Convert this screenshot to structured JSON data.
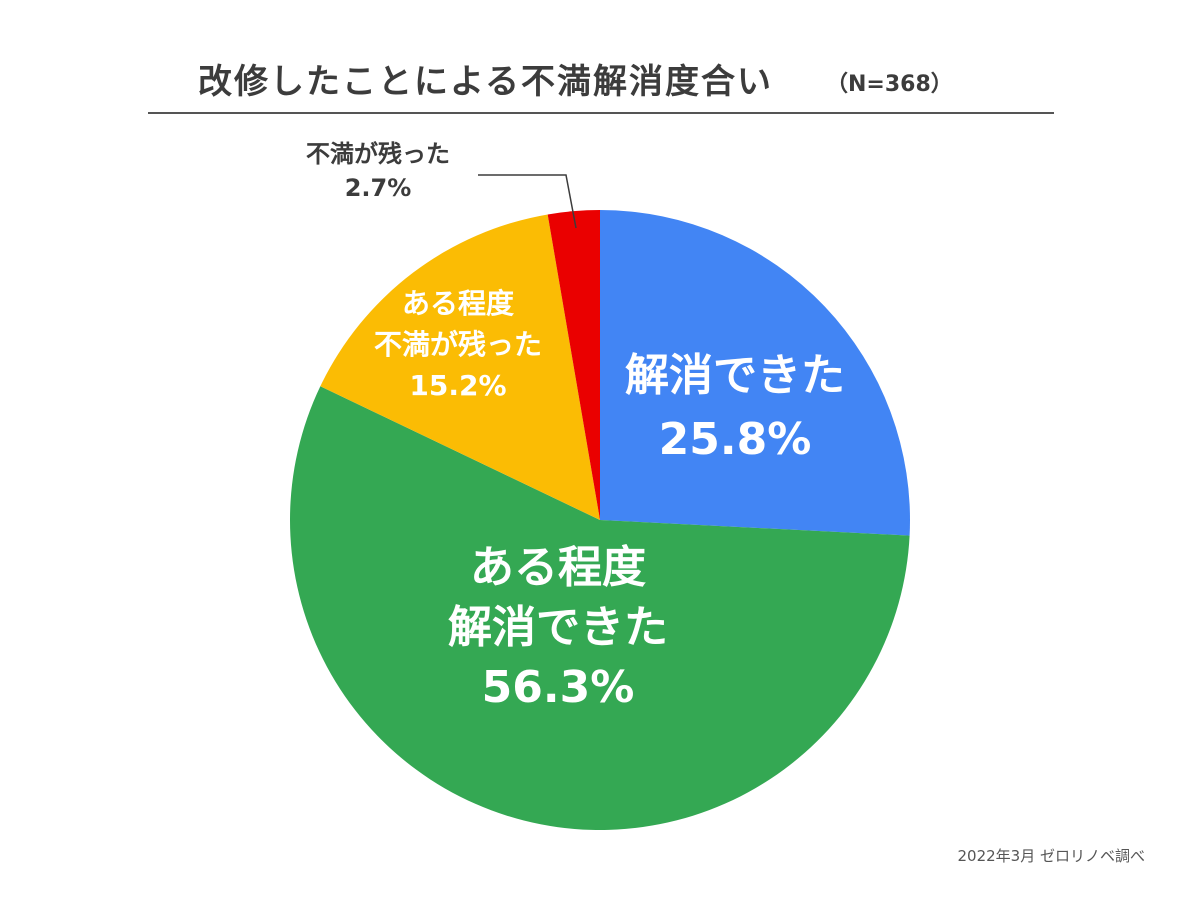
{
  "chart_data": {
    "type": "pie",
    "title": "改修したことによる不満解消度合い",
    "subtitle": "（N=368）",
    "slices": [
      {
        "label_lines": [
          "解消できた"
        ],
        "value": 25.8,
        "value_label": "25.8%",
        "color": "#4285F4"
      },
      {
        "label_lines": [
          "ある程度",
          "解消できた"
        ],
        "value": 56.3,
        "value_label": "56.3%",
        "color": "#34A853"
      },
      {
        "label_lines": [
          "ある程度",
          "不満が残った"
        ],
        "value": 15.2,
        "value_label": "15.2%",
        "color": "#FBBC04"
      },
      {
        "label_lines": [
          "不満が残った"
        ],
        "value": 2.7,
        "value_label": "2.7%",
        "color": "#EA0000"
      }
    ],
    "start_angle": "12 o'clock",
    "direction": "clockwise"
  },
  "footer": {
    "credit": "2022年3月 ゼロリノベ調べ"
  }
}
